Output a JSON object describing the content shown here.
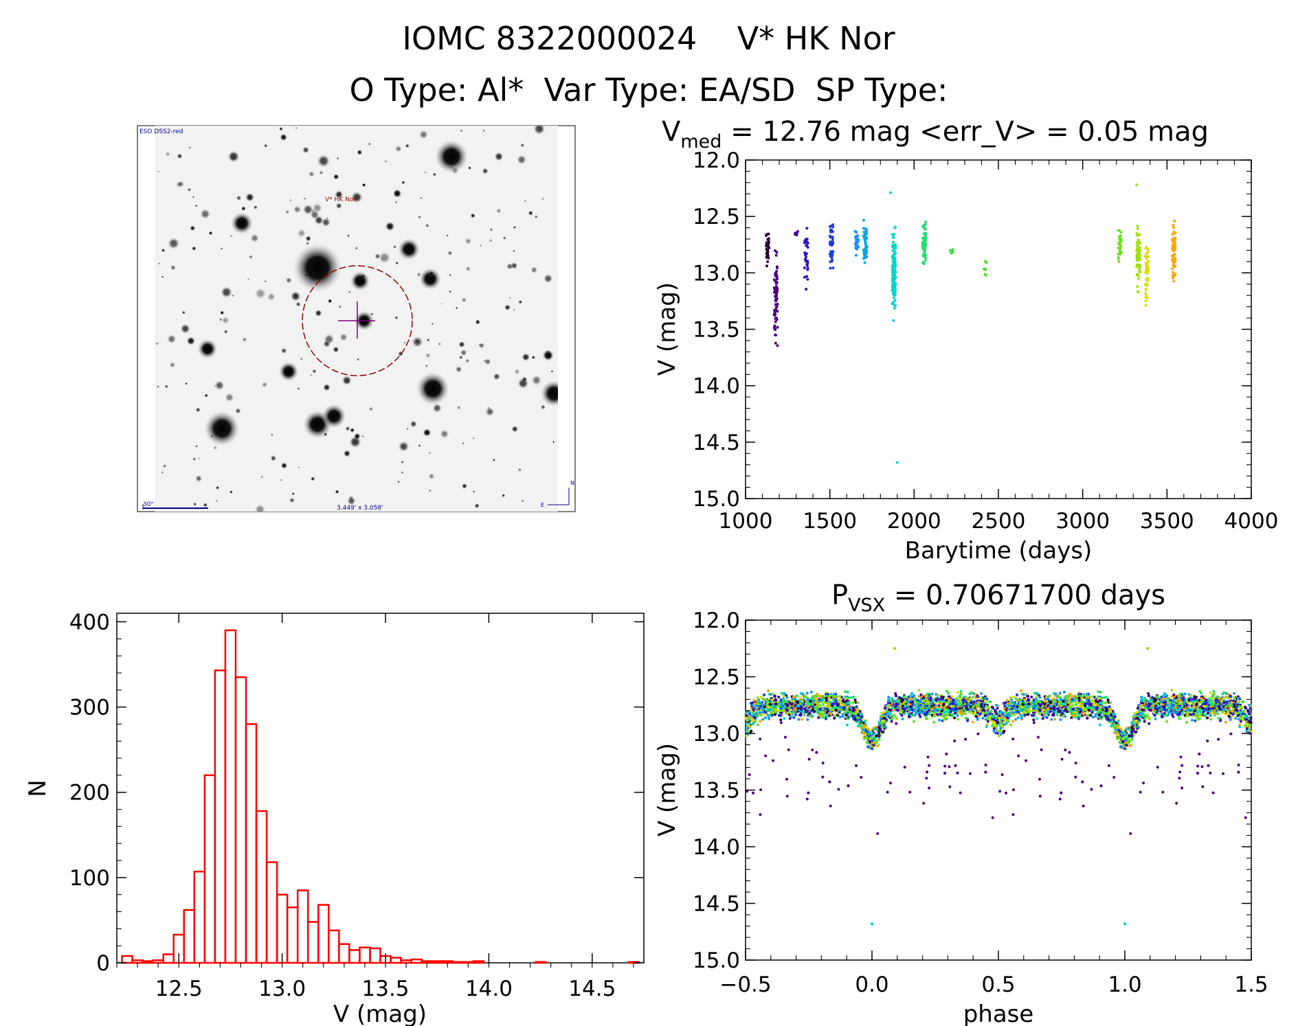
{
  "header": {
    "title_line1": "IOMC 8322000024    V* HK Nor",
    "title_line2": "O Type: Al*  Var Type: EA/SD  SP Type:"
  },
  "finder": {
    "survey_label": "ESO DSS2-red",
    "target_label": "V* HK Nor",
    "scale_label": "30\"",
    "fov_label": "3.449' x 3.058'",
    "north_label": "N",
    "east_label": "E",
    "accent_color": "#8b0000",
    "marker_color": "#800080",
    "label_color": "#00008b"
  },
  "colors": {
    "histogram": "#ff0000",
    "axis": "#000000"
  },
  "chart_data": [
    {
      "id": "lightcurve",
      "type": "scatter",
      "title_main": "V",
      "title_sub": "med",
      "title_rest": " = 12.76 mag <err_V> = 0.05 mag",
      "xlabel": "Barytime (days)",
      "ylabel": "V (mag)",
      "xlim": [
        1000,
        4000
      ],
      "ylim": [
        15.0,
        12.0
      ],
      "y_inverted": true,
      "xticks": [
        1000,
        1500,
        2000,
        2500,
        3000,
        3500,
        4000
      ],
      "yticks": [
        12.0,
        12.5,
        13.0,
        13.5,
        14.0,
        14.5,
        15.0
      ],
      "groups": [
        {
          "t": 1130,
          "color": "#2a0030",
          "vmin": 12.55,
          "vmax": 13.0,
          "n": 40
        },
        {
          "t": 1180,
          "color": "#4b0082",
          "vmin": 12.65,
          "vmax": 13.8,
          "n": 70
        },
        {
          "t": 1300,
          "color": "#3b00a0",
          "vmin": 12.6,
          "vmax": 12.7,
          "n": 6
        },
        {
          "t": 1360,
          "color": "#2a10c8",
          "vmin": 12.42,
          "vmax": 13.25,
          "n": 30
        },
        {
          "t": 1510,
          "color": "#1f3fd8",
          "vmin": 12.5,
          "vmax": 13.05,
          "n": 40
        },
        {
          "t": 1660,
          "color": "#1e90ff",
          "vmin": 12.55,
          "vmax": 12.9,
          "n": 30
        },
        {
          "t": 1710,
          "color": "#0aa6e6",
          "vmin": 12.45,
          "vmax": 13.05,
          "n": 50
        },
        {
          "t": 1880,
          "color": "#00d8c8",
          "vmin": 12.5,
          "vmax": 13.5,
          "n": 150
        },
        {
          "t": 2060,
          "color": "#20e070",
          "vmin": 12.45,
          "vmax": 13.0,
          "n": 60
        },
        {
          "t": 2220,
          "color": "#40e040",
          "vmin": 12.75,
          "vmax": 12.88,
          "n": 6
        },
        {
          "t": 2420,
          "color": "#50e030",
          "vmin": 12.82,
          "vmax": 13.05,
          "n": 8
        },
        {
          "t": 3220,
          "color": "#70e020",
          "vmin": 12.5,
          "vmax": 12.95,
          "n": 40
        },
        {
          "t": 3330,
          "color": "#a0e010",
          "vmin": 12.45,
          "vmax": 13.25,
          "n": 70
        },
        {
          "t": 3380,
          "color": "#d8e000",
          "vmin": 12.6,
          "vmax": 13.45,
          "n": 50
        },
        {
          "t": 3540,
          "color": "#ffa500",
          "vmin": 12.45,
          "vmax": 13.15,
          "n": 60
        }
      ],
      "outliers": [
        {
          "t": 1860,
          "v": 12.29,
          "color": "#00d8c8"
        },
        {
          "t": 1900,
          "v": 14.68,
          "color": "#00d8c8"
        },
        {
          "t": 3320,
          "v": 12.22,
          "color": "#a0e010"
        }
      ]
    },
    {
      "id": "histogram",
      "type": "bar",
      "xlabel": "V (mag)",
      "ylabel": "N",
      "xlim": [
        12.2,
        14.75
      ],
      "ylim": [
        0,
        410
      ],
      "xticks": [
        12.5,
        13.0,
        13.5,
        14.0,
        14.5
      ],
      "yticks": [
        0,
        100,
        200,
        300,
        400
      ],
      "bin_start": 12.225,
      "bin_width": 0.05,
      "values": [
        8,
        3,
        2,
        3,
        10,
        33,
        62,
        107,
        220,
        343,
        390,
        335,
        280,
        178,
        118,
        80,
        65,
        85,
        48,
        68,
        38,
        22,
        15,
        18,
        17,
        8,
        6,
        3,
        4,
        2,
        2,
        2,
        1,
        1,
        2,
        0,
        0,
        0,
        0,
        0,
        1,
        0,
        0,
        0,
        0,
        0,
        0,
        0,
        0,
        1
      ]
    },
    {
      "id": "phased",
      "type": "scatter",
      "title_main": "P",
      "title_sub": "VSX",
      "title_rest": " = 0.70671700 days",
      "xlabel": "phase",
      "ylabel": "V (mag)",
      "xlim": [
        -0.5,
        1.5
      ],
      "ylim": [
        15.0,
        12.0
      ],
      "y_inverted": true,
      "xticks": [
        -0.5,
        0.0,
        0.5,
        1.0,
        1.5
      ],
      "xtick_labels": [
        "−0.5",
        "0.0",
        "0.5",
        "1.0",
        "1.5"
      ],
      "yticks": [
        12.0,
        12.5,
        13.0,
        13.5,
        14.0,
        14.5,
        15.0
      ],
      "period_days": 0.706717,
      "baseline_mag": 12.76,
      "primary_eclipse_phase": 0.0,
      "secondary_eclipse_phase": 0.5,
      "eclipse_depth_mag": 0.3,
      "outliers": [
        {
          "phase": 0.0,
          "v": 14.68,
          "color": "#00d8c8"
        },
        {
          "phase": 1.0,
          "v": 14.68,
          "color": "#00d8c8"
        },
        {
          "phase": 0.09,
          "v": 12.25,
          "color": "#a0e010"
        },
        {
          "phase": 1.09,
          "v": 12.25,
          "color": "#a0e010"
        }
      ]
    }
  ]
}
